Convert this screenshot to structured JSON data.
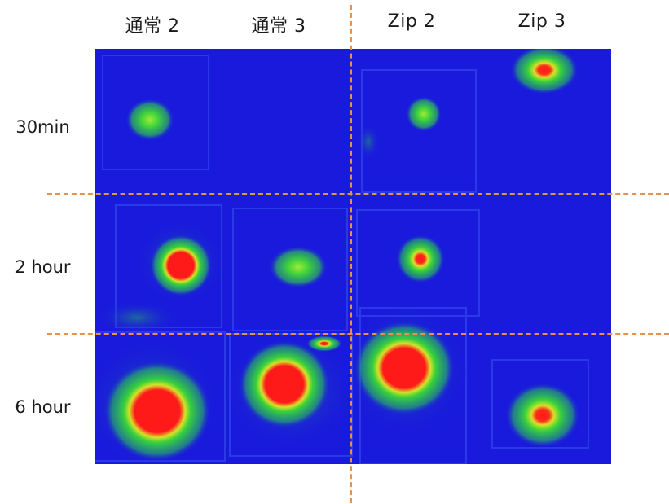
{
  "columns": [
    {
      "label": "通常 2"
    },
    {
      "label": "通常 3"
    },
    {
      "label": "Zip 2"
    },
    {
      "label": "Zip 3"
    }
  ],
  "rows": [
    {
      "label": "30min"
    },
    {
      "label": "2 hour"
    },
    {
      "label": "6 hour"
    }
  ],
  "colors": {
    "background_blue": "#1a1adc",
    "low_green": "#2fd22f",
    "high_red": "#ff1a1a",
    "guide_lines": "#e8914a"
  },
  "sample_intensity": [
    {
      "row": "30min",
      "column": "通常 2",
      "level": "low"
    },
    {
      "row": "30min",
      "column": "通常 3",
      "level": "none"
    },
    {
      "row": "30min",
      "column": "Zip 2",
      "level": "low"
    },
    {
      "row": "30min",
      "column": "Zip 3",
      "level": "medium"
    },
    {
      "row": "2 hour",
      "column": "通常 2",
      "level": "high"
    },
    {
      "row": "2 hour",
      "column": "通常 3",
      "level": "low"
    },
    {
      "row": "2 hour",
      "column": "Zip 2",
      "level": "medium"
    },
    {
      "row": "2 hour",
      "column": "Zip 3",
      "level": "none"
    },
    {
      "row": "6 hour",
      "column": "通常 2",
      "level": "high"
    },
    {
      "row": "6 hour",
      "column": "通常 3",
      "level": "high"
    },
    {
      "row": "6 hour",
      "column": "Zip 2",
      "level": "high"
    },
    {
      "row": "6 hour",
      "column": "Zip 3",
      "level": "high"
    }
  ]
}
